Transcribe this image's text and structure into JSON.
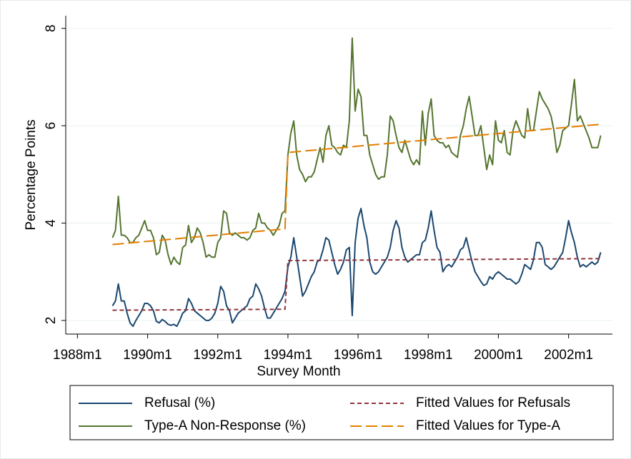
{
  "chart_data": {
    "type": "line",
    "x_label": "Survey Month",
    "y_label": "Percentage Points",
    "xlim": [
      "1987m9",
      "2003m4"
    ],
    "xticks": [
      "1988m1",
      "1990m1",
      "1992m1",
      "1994m1",
      "1996m1",
      "1998m1",
      "2000m1",
      "2002m1"
    ],
    "ylim": [
      1.72,
      8.26
    ],
    "yticks": [
      2,
      4,
      6,
      8
    ],
    "grid": true,
    "legend": "bottom",
    "series": [
      {
        "name": "Refusal (%)",
        "color": "#1a476f",
        "dash": "solid",
        "x": [
          "1989m1",
          "1989m2",
          "1989m3",
          "1989m4",
          "1989m5",
          "1989m6",
          "1989m7",
          "1989m8",
          "1989m9",
          "1989m10",
          "1989m11",
          "1989m12",
          "1990m1",
          "1990m2",
          "1990m3",
          "1990m4",
          "1990m5",
          "1990m6",
          "1990m7",
          "1990m8",
          "1990m9",
          "1990m10",
          "1990m11",
          "1990m12",
          "1991m1",
          "1991m2",
          "1991m3",
          "1991m4",
          "1991m5",
          "1991m6",
          "1991m7",
          "1991m8",
          "1991m9",
          "1991m10",
          "1991m11",
          "1991m12",
          "1992m1",
          "1992m2",
          "1992m3",
          "1992m4",
          "1992m5",
          "1992m6",
          "1992m7",
          "1992m8",
          "1992m9",
          "1992m10",
          "1992m11",
          "1992m12",
          "1993m1",
          "1993m2",
          "1993m3",
          "1993m4",
          "1993m5",
          "1993m6",
          "1993m7",
          "1993m8",
          "1993m9",
          "1993m10",
          "1993m11",
          "1993m12",
          "1994m1",
          "1994m2",
          "1994m3",
          "1994m4",
          "1994m5",
          "1994m6",
          "1994m7",
          "1994m8",
          "1994m9",
          "1994m10",
          "1994m11",
          "1994m12",
          "1995m1",
          "1995m2",
          "1995m3",
          "1995m4",
          "1995m5",
          "1995m6",
          "1995m7",
          "1995m8",
          "1995m9",
          "1995m10",
          "1995m11",
          "1995m12",
          "1996m1",
          "1996m2",
          "1996m3",
          "1996m4",
          "1996m5",
          "1996m6",
          "1996m7",
          "1996m8",
          "1996m9",
          "1996m10",
          "1996m11",
          "1996m12",
          "1997m1",
          "1997m2",
          "1997m3",
          "1997m4",
          "1997m5",
          "1997m6",
          "1997m7",
          "1997m8",
          "1997m9",
          "1997m10",
          "1997m11",
          "1997m12",
          "1998m1",
          "1998m2",
          "1998m3",
          "1998m4",
          "1998m5",
          "1998m6",
          "1998m7",
          "1998m8",
          "1998m9",
          "1998m10",
          "1998m11",
          "1998m12",
          "1999m1",
          "1999m2",
          "1999m3",
          "1999m4",
          "1999m5",
          "1999m6",
          "1999m7",
          "1999m8",
          "1999m9",
          "1999m10",
          "1999m11",
          "1999m12",
          "2000m1",
          "2000m2",
          "2000m3",
          "2000m4",
          "2000m5",
          "2000m6",
          "2000m7",
          "2000m8",
          "2000m9",
          "2000m10",
          "2000m11",
          "2000m12",
          "2001m1",
          "2001m2",
          "2001m3",
          "2001m4",
          "2001m5",
          "2001m6",
          "2001m7",
          "2001m8",
          "2001m9",
          "2001m10",
          "2001m11",
          "2001m12",
          "2002m1",
          "2002m2",
          "2002m3",
          "2002m4",
          "2002m5",
          "2002m6",
          "2002m7",
          "2002m8",
          "2002m9",
          "2002m10",
          "2002m11",
          "2002m12"
        ],
        "values": [
          2.3,
          2.4,
          2.75,
          2.4,
          2.4,
          2.15,
          1.95,
          1.88,
          2.0,
          2.1,
          2.2,
          2.35,
          2.35,
          2.3,
          2.2,
          1.98,
          1.95,
          2.02,
          1.98,
          1.92,
          1.9,
          1.92,
          1.88,
          2.0,
          2.15,
          2.2,
          2.45,
          2.35,
          2.2,
          2.15,
          2.1,
          2.05,
          2.0,
          2.0,
          2.05,
          2.15,
          2.35,
          2.7,
          2.6,
          2.3,
          2.2,
          1.95,
          2.05,
          2.15,
          2.2,
          2.25,
          2.3,
          2.45,
          2.5,
          2.75,
          2.65,
          2.5,
          2.25,
          2.05,
          2.05,
          2.15,
          2.25,
          2.35,
          2.45,
          2.6,
          3.1,
          3.3,
          3.7,
          3.3,
          2.9,
          2.5,
          2.6,
          2.75,
          2.9,
          3.0,
          3.2,
          3.25,
          3.45,
          3.7,
          3.65,
          3.4,
          3.15,
          2.95,
          3.05,
          3.2,
          3.45,
          3.5,
          2.1,
          3.6,
          4.1,
          4.3,
          3.95,
          3.7,
          3.2,
          3.0,
          2.95,
          3.0,
          3.1,
          3.2,
          3.3,
          3.5,
          3.85,
          4.05,
          3.9,
          3.5,
          3.3,
          3.2,
          3.25,
          3.3,
          3.35,
          3.35,
          3.6,
          3.65,
          3.9,
          4.25,
          3.85,
          3.5,
          3.4,
          3.0,
          3.1,
          3.15,
          3.1,
          3.2,
          3.3,
          3.45,
          3.5,
          3.7,
          3.45,
          3.2,
          3.0,
          2.9,
          2.8,
          2.72,
          2.75,
          2.9,
          2.85,
          2.95,
          3.0,
          2.95,
          2.9,
          2.85,
          2.85,
          2.8,
          2.75,
          2.8,
          2.95,
          3.15,
          3.1,
          3.05,
          3.25,
          3.6,
          3.6,
          3.5,
          3.15,
          3.1,
          3.05,
          3.1,
          3.2,
          3.3,
          3.4,
          3.7,
          4.05,
          3.8,
          3.6,
          3.3,
          3.1,
          3.15,
          3.1,
          3.15,
          3.2,
          3.15,
          3.2,
          3.4
        ]
      },
      {
        "name": "Type-A Non-Response (%)",
        "color": "#55752f",
        "dash": "solid",
        "x": [
          "1989m1",
          "1989m2",
          "1989m3",
          "1989m4",
          "1989m5",
          "1989m6",
          "1989m7",
          "1989m8",
          "1989m9",
          "1989m10",
          "1989m11",
          "1989m12",
          "1990m1",
          "1990m2",
          "1990m3",
          "1990m4",
          "1990m5",
          "1990m6",
          "1990m7",
          "1990m8",
          "1990m9",
          "1990m10",
          "1990m11",
          "1990m12",
          "1991m1",
          "1991m2",
          "1991m3",
          "1991m4",
          "1991m5",
          "1991m6",
          "1991m7",
          "1991m8",
          "1991m9",
          "1991m10",
          "1991m11",
          "1991m12",
          "1992m1",
          "1992m2",
          "1992m3",
          "1992m4",
          "1992m5",
          "1992m6",
          "1992m7",
          "1992m8",
          "1992m9",
          "1992m10",
          "1992m11",
          "1992m12",
          "1993m1",
          "1993m2",
          "1993m3",
          "1993m4",
          "1993m5",
          "1993m6",
          "1993m7",
          "1993m8",
          "1993m9",
          "1993m10",
          "1993m11",
          "1993m12",
          "1994m1",
          "1994m2",
          "1994m3",
          "1994m4",
          "1994m5",
          "1994m6",
          "1994m7",
          "1994m8",
          "1994m9",
          "1994m10",
          "1994m11",
          "1994m12",
          "1995m1",
          "1995m2",
          "1995m3",
          "1995m4",
          "1995m5",
          "1995m6",
          "1995m7",
          "1995m8",
          "1995m9",
          "1995m10",
          "1995m11",
          "1995m12",
          "1996m1",
          "1996m2",
          "1996m3",
          "1996m4",
          "1996m5",
          "1996m6",
          "1996m7",
          "1996m8",
          "1996m9",
          "1996m10",
          "1996m11",
          "1996m12",
          "1997m1",
          "1997m2",
          "1997m3",
          "1997m4",
          "1997m5",
          "1997m6",
          "1997m7",
          "1997m8",
          "1997m9",
          "1997m10",
          "1997m11",
          "1997m12",
          "1998m1",
          "1998m2",
          "1998m3",
          "1998m4",
          "1998m5",
          "1998m6",
          "1998m7",
          "1998m8",
          "1998m9",
          "1998m10",
          "1998m11",
          "1998m12",
          "1999m1",
          "1999m2",
          "1999m3",
          "1999m4",
          "1999m5",
          "1999m6",
          "1999m7",
          "1999m8",
          "1999m9",
          "1999m10",
          "1999m11",
          "1999m12",
          "2000m1",
          "2000m2",
          "2000m3",
          "2000m4",
          "2000m5",
          "2000m6",
          "2000m7",
          "2000m8",
          "2000m9",
          "2000m10",
          "2000m11",
          "2000m12",
          "2001m1",
          "2001m2",
          "2001m3",
          "2001m4",
          "2001m5",
          "2001m6",
          "2001m7",
          "2001m8",
          "2001m9",
          "2001m10",
          "2001m11",
          "2001m12",
          "2002m1",
          "2002m2",
          "2002m3",
          "2002m4",
          "2002m5",
          "2002m6",
          "2002m7",
          "2002m8",
          "2002m9",
          "2002m10",
          "2002m11",
          "2002m12"
        ],
        "values": [
          3.7,
          3.85,
          4.55,
          3.75,
          3.75,
          3.7,
          3.6,
          3.6,
          3.7,
          3.75,
          3.9,
          4.05,
          3.85,
          3.85,
          3.7,
          3.35,
          3.4,
          3.75,
          3.65,
          3.35,
          3.15,
          3.3,
          3.2,
          3.15,
          3.5,
          3.55,
          3.95,
          3.6,
          3.7,
          3.9,
          3.8,
          3.6,
          3.3,
          3.35,
          3.3,
          3.3,
          3.6,
          3.7,
          4.25,
          4.2,
          3.8,
          3.75,
          3.8,
          3.75,
          3.7,
          3.7,
          3.65,
          3.7,
          3.85,
          3.9,
          4.2,
          4.0,
          4.0,
          3.9,
          3.85,
          3.75,
          3.85,
          3.95,
          4.2,
          4.25,
          5.4,
          5.85,
          6.1,
          5.4,
          5.1,
          5.0,
          4.85,
          4.95,
          4.95,
          5.05,
          5.3,
          5.55,
          5.25,
          5.8,
          6.0,
          5.6,
          5.55,
          5.45,
          5.4,
          5.6,
          5.55,
          6.1,
          7.8,
          6.3,
          6.75,
          6.6,
          5.8,
          5.8,
          5.4,
          5.2,
          5.0,
          4.9,
          4.95,
          4.95,
          5.4,
          6.2,
          6.1,
          5.8,
          5.55,
          5.45,
          5.7,
          5.5,
          5.3,
          5.2,
          5.3,
          5.2,
          6.3,
          5.6,
          6.25,
          6.55,
          5.8,
          5.7,
          5.65,
          5.65,
          5.55,
          5.6,
          5.45,
          5.4,
          5.35,
          5.8,
          6.0,
          6.35,
          6.6,
          6.2,
          5.8,
          5.8,
          6.0,
          5.55,
          5.1,
          5.4,
          5.2,
          6.1,
          5.7,
          5.65,
          5.9,
          5.45,
          5.4,
          5.9,
          6.1,
          5.95,
          5.8,
          5.75,
          6.35,
          5.9,
          5.9,
          6.3,
          6.7,
          6.55,
          6.45,
          6.35,
          6.2,
          5.9,
          5.45,
          5.6,
          5.9,
          5.95,
          6.0,
          6.45,
          6.95,
          6.1,
          6.2,
          6.05,
          5.9,
          5.75,
          5.55,
          5.55,
          5.55,
          5.8
        ]
      },
      {
        "name": "Fitted Values for Refusals",
        "color": "#90353b",
        "dash": "short",
        "x": [
          "1989m1",
          "1993m12",
          "1994m1",
          "2002m12"
        ],
        "values": [
          2.21,
          2.23,
          3.23,
          3.27
        ]
      },
      {
        "name": "Fitted Values for Type-A",
        "color": "#e37e00",
        "dash": "long",
        "x": [
          "1989m1",
          "1993m12",
          "1994m1",
          "2002m12"
        ],
        "values": [
          3.56,
          3.88,
          5.45,
          6.03
        ]
      }
    ]
  }
}
